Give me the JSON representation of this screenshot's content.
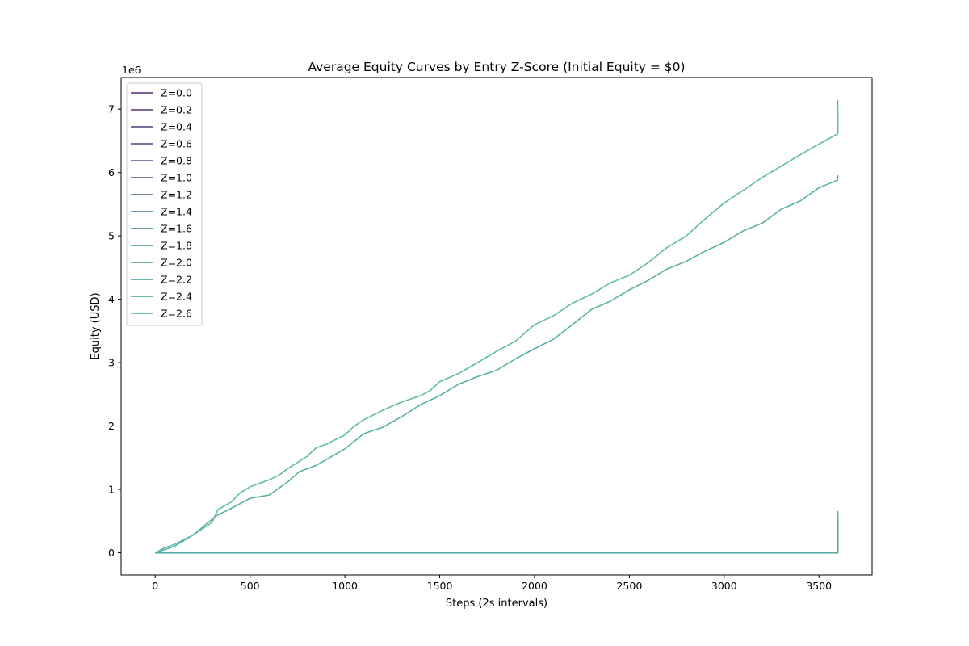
{
  "chart_data": {
    "type": "line",
    "title": "Average Equity Curves by Entry Z-Score (Initial Equity = $0)",
    "xlabel": "Steps (2s intervals)",
    "ylabel": "Equity (USD)",
    "y_offset_label": "1e6",
    "xlim": [
      -180,
      3780
    ],
    "ylim": [
      -350000,
      7500000
    ],
    "x_ticks": [
      0,
      500,
      1000,
      1500,
      2000,
      2500,
      3000,
      3500
    ],
    "y_ticks": [
      0,
      1000000,
      2000000,
      3000000,
      4000000,
      5000000,
      6000000,
      7000000
    ],
    "y_tick_labels": [
      "0",
      "1",
      "2",
      "3",
      "4",
      "5",
      "6",
      "7"
    ],
    "grid": false,
    "legend_position": "upper-left",
    "series": [
      {
        "name": "Z=0.0",
        "color": "#6d4a85",
        "points": [
          [
            0,
            0
          ],
          [
            3598,
            0
          ],
          [
            3599,
            120000
          ],
          [
            3600,
            0
          ]
        ]
      },
      {
        "name": "Z=0.2",
        "color": "#6b5189",
        "points": [
          [
            0,
            0
          ],
          [
            3598,
            0
          ],
          [
            3599,
            150000
          ],
          [
            3600,
            0
          ]
        ]
      },
      {
        "name": "Z=0.4",
        "color": "#69588d",
        "points": [
          [
            0,
            0
          ],
          [
            3598,
            0
          ],
          [
            3599,
            180000
          ],
          [
            3600,
            0
          ]
        ]
      },
      {
        "name": "Z=0.6",
        "color": "#676193",
        "points": [
          [
            0,
            0
          ],
          [
            3598,
            0
          ],
          [
            3599,
            220000
          ],
          [
            3600,
            0
          ]
        ]
      },
      {
        "name": "Z=0.8",
        "color": "#646b97",
        "points": [
          [
            0,
            0
          ],
          [
            3598,
            0
          ],
          [
            3599,
            260000
          ],
          [
            3600,
            0
          ]
        ]
      },
      {
        "name": "Z=1.0",
        "color": "#62749b",
        "points": [
          [
            0,
            0
          ],
          [
            3598,
            0
          ],
          [
            3599,
            300000
          ],
          [
            3600,
            0
          ]
        ]
      },
      {
        "name": "Z=1.2",
        "color": "#5f7e9d",
        "points": [
          [
            0,
            0
          ],
          [
            3598,
            0
          ],
          [
            3599,
            350000
          ],
          [
            3600,
            0
          ]
        ]
      },
      {
        "name": "Z=1.4",
        "color": "#5c879f",
        "points": [
          [
            0,
            0
          ],
          [
            3598,
            0
          ],
          [
            3599,
            400000
          ],
          [
            3600,
            0
          ]
        ]
      },
      {
        "name": "Z=1.6",
        "color": "#5990a1",
        "points": [
          [
            0,
            0
          ],
          [
            3598,
            0
          ],
          [
            3599,
            450000
          ],
          [
            3600,
            0
          ]
        ]
      },
      {
        "name": "Z=1.8",
        "color": "#5799a3",
        "points": [
          [
            0,
            0
          ],
          [
            3598,
            0
          ],
          [
            3599,
            520000
          ],
          [
            3600,
            0
          ]
        ]
      },
      {
        "name": "Z=2.0",
        "color": "#55a2a4",
        "points": [
          [
            0,
            0
          ],
          [
            3598,
            0
          ],
          [
            3599,
            580000
          ],
          [
            3600,
            0
          ]
        ]
      },
      {
        "name": "Z=2.2",
        "color": "#53aaa5",
        "points": [
          [
            0,
            0
          ],
          [
            3598,
            0
          ],
          [
            3599,
            650000
          ],
          [
            3600,
            0
          ]
        ]
      },
      {
        "name": "Z=2.4",
        "color": "#56b1a6",
        "points": [
          [
            0,
            0
          ],
          [
            100,
            100000
          ],
          [
            200,
            280000
          ],
          [
            320,
            580000
          ],
          [
            400,
            700000
          ],
          [
            500,
            860000
          ],
          [
            600,
            910000
          ],
          [
            700,
            1120000
          ],
          [
            760,
            1280000
          ],
          [
            850,
            1380000
          ],
          [
            1000,
            1640000
          ],
          [
            1100,
            1880000
          ],
          [
            1200,
            1980000
          ],
          [
            1300,
            2150000
          ],
          [
            1400,
            2340000
          ],
          [
            1500,
            2480000
          ],
          [
            1600,
            2660000
          ],
          [
            1700,
            2780000
          ],
          [
            1800,
            2880000
          ],
          [
            1900,
            3060000
          ],
          [
            2000,
            3220000
          ],
          [
            2100,
            3370000
          ],
          [
            2200,
            3600000
          ],
          [
            2300,
            3840000
          ],
          [
            2400,
            3970000
          ],
          [
            2500,
            4150000
          ],
          [
            2600,
            4300000
          ],
          [
            2700,
            4480000
          ],
          [
            2800,
            4600000
          ],
          [
            2900,
            4760000
          ],
          [
            3000,
            4900000
          ],
          [
            3100,
            5080000
          ],
          [
            3200,
            5200000
          ],
          [
            3300,
            5420000
          ],
          [
            3400,
            5550000
          ],
          [
            3500,
            5760000
          ],
          [
            3598,
            5880000
          ],
          [
            3599,
            5950000
          ],
          [
            3600,
            5900000
          ]
        ]
      },
      {
        "name": "Z=2.6",
        "color": "#5cbba9",
        "points": [
          [
            0,
            0
          ],
          [
            50,
            80000
          ],
          [
            100,
            130000
          ],
          [
            200,
            280000
          ],
          [
            300,
            480000
          ],
          [
            330,
            680000
          ],
          [
            400,
            800000
          ],
          [
            450,
            950000
          ],
          [
            500,
            1040000
          ],
          [
            600,
            1150000
          ],
          [
            650,
            1220000
          ],
          [
            700,
            1330000
          ],
          [
            800,
            1520000
          ],
          [
            850,
            1660000
          ],
          [
            900,
            1710000
          ],
          [
            1000,
            1860000
          ],
          [
            1050,
            2000000
          ],
          [
            1100,
            2100000
          ],
          [
            1200,
            2250000
          ],
          [
            1300,
            2380000
          ],
          [
            1400,
            2480000
          ],
          [
            1450,
            2560000
          ],
          [
            1500,
            2700000
          ],
          [
            1600,
            2830000
          ],
          [
            1700,
            3000000
          ],
          [
            1800,
            3180000
          ],
          [
            1900,
            3340000
          ],
          [
            2000,
            3600000
          ],
          [
            2100,
            3740000
          ],
          [
            2200,
            3940000
          ],
          [
            2300,
            4080000
          ],
          [
            2400,
            4260000
          ],
          [
            2500,
            4380000
          ],
          [
            2600,
            4580000
          ],
          [
            2700,
            4820000
          ],
          [
            2800,
            5000000
          ],
          [
            2900,
            5270000
          ],
          [
            3000,
            5520000
          ],
          [
            3100,
            5720000
          ],
          [
            3200,
            5920000
          ],
          [
            3300,
            6100000
          ],
          [
            3400,
            6280000
          ],
          [
            3500,
            6450000
          ],
          [
            3598,
            6610000
          ],
          [
            3599,
            7140000
          ],
          [
            3600,
            6620000
          ]
        ]
      }
    ]
  }
}
